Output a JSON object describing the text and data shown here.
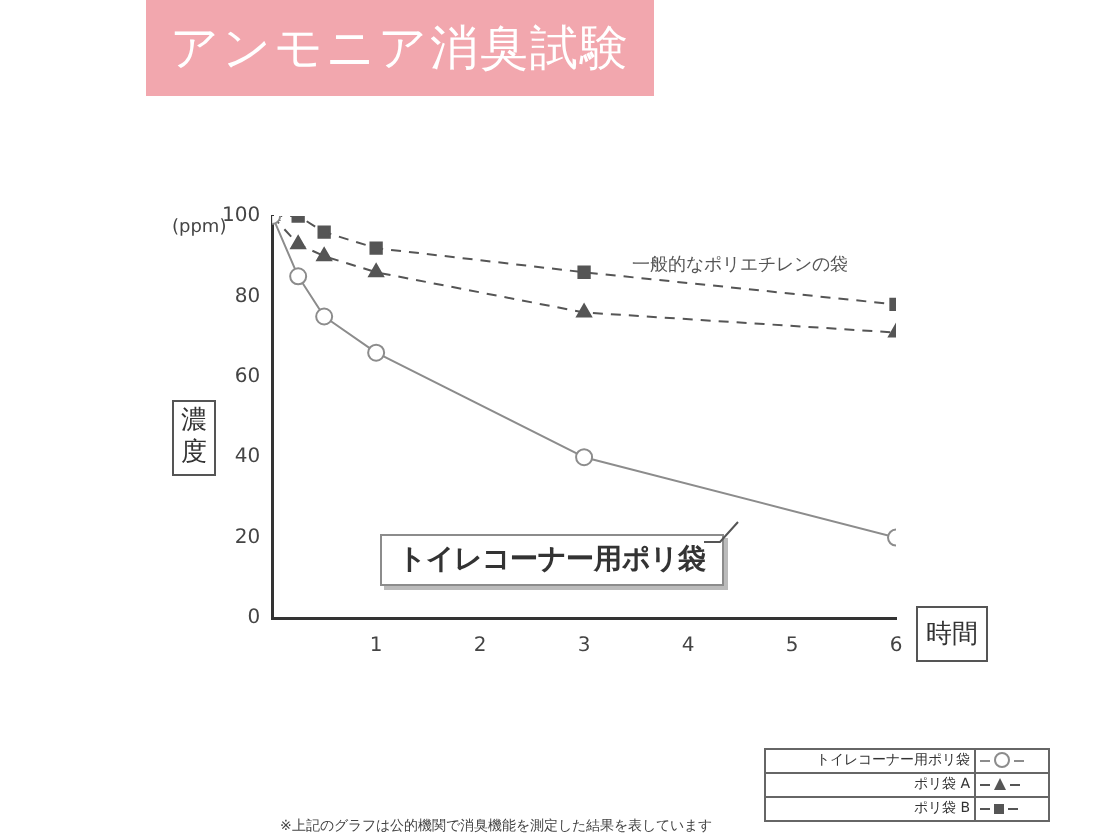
{
  "chart_data": {
    "type": "line",
    "title": "アンモニア消臭試験",
    "xlabel": "時間",
    "ylabel": "濃度",
    "annotations": [
      "(ppm)",
      "一般的なポリエチレンの袋",
      "※上記のグラフは公的機関で消臭機能を測定した結果を表しています"
    ],
    "x": [
      0,
      0.25,
      0.5,
      1,
      3,
      6
    ],
    "series": [
      {
        "name": "トイレコーナー用ポリ袋",
        "color": "#8c8c8c",
        "values": [
          100,
          85,
          75,
          66,
          40,
          20
        ],
        "marker": "circle",
        "line_style": "solid"
      },
      {
        "name": "ポリ袋 A",
        "color": "#555555",
        "values": [
          100,
          93,
          90,
          86,
          76,
          71
        ],
        "marker": "triangle",
        "line_style": "dashed"
      },
      {
        "name": "ポリ袋 B",
        "color": "#555555",
        "values": [
          100,
          100,
          96,
          92,
          86,
          78
        ],
        "marker": "square",
        "line_style": "dashed"
      }
    ],
    "xlim": [
      0,
      6
    ],
    "xticks": [
      {
        "value": 0,
        "label": null
      },
      1,
      2,
      3,
      4,
      5,
      6
    ],
    "ylim": [
      0,
      100
    ],
    "yticks": [
      0,
      20,
      40,
      60,
      80,
      100
    ],
    "grid": false,
    "legend": "bottom right"
  }
}
